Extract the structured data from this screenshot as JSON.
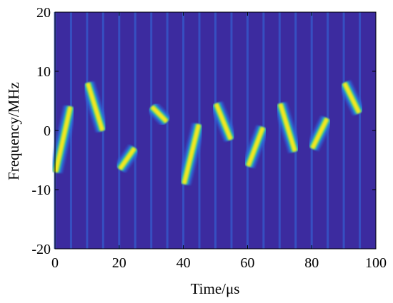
{
  "chart_data": {
    "type": "heatmap",
    "title": "",
    "xlabel": "Time/μs",
    "ylabel": "Frequency/MHz",
    "xlim": [
      0,
      100
    ],
    "ylim": [
      -20,
      20
    ],
    "x_ticks": [
      "0",
      "20",
      "40",
      "60",
      "80",
      "100"
    ],
    "x_tick_values": [
      0,
      20,
      40,
      60,
      80,
      100
    ],
    "y_ticks": [
      "20",
      "10",
      "0",
      "-10",
      "-20"
    ],
    "y_tick_values": [
      20,
      10,
      0,
      -10,
      -20
    ],
    "grid": false,
    "colormap": {
      "background": "#3c2b9f",
      "low": "#2d6fe0",
      "mid": "#1fb8b6",
      "high": "#f6e81c"
    },
    "pulses": [
      {
        "t_start": 0,
        "t_end": 5,
        "f_start": -7,
        "f_end": 4
      },
      {
        "t_start": 10,
        "t_end": 15,
        "f_start": 8,
        "f_end": 0
      },
      {
        "t_start": 20,
        "t_end": 25,
        "f_start": -6.5,
        "f_end": -3
      },
      {
        "t_start": 30,
        "t_end": 35,
        "f_start": 4,
        "f_end": 1.5
      },
      {
        "t_start": 40,
        "t_end": 45,
        "f_start": -9,
        "f_end": 1
      },
      {
        "t_start": 50,
        "t_end": 55,
        "f_start": 4.5,
        "f_end": -1.5
      },
      {
        "t_start": 60,
        "t_end": 65,
        "f_start": -6,
        "f_end": 0.5
      },
      {
        "t_start": 70,
        "t_end": 75,
        "f_start": 4.5,
        "f_end": -3.5
      },
      {
        "t_start": 80,
        "t_end": 85,
        "f_start": -3,
        "f_end": 2
      },
      {
        "t_start": 90,
        "t_end": 95,
        "f_start": 8,
        "f_end": 3
      }
    ]
  }
}
